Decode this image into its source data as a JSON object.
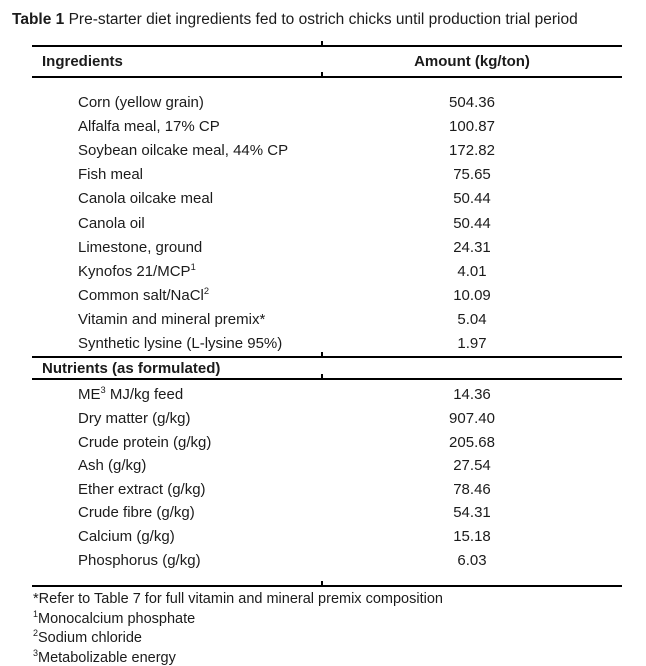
{
  "title": {
    "bold": "Table 1",
    "rest": " Pre-starter diet ingredients fed to ostrich chicks until production trial period"
  },
  "table": {
    "header": {
      "ingredients": "Ingredients",
      "amount": "Amount (kg/ton)"
    },
    "ingredients_rows": [
      {
        "pre": "Corn (yellow grain)",
        "sup": "",
        "post": "",
        "amount": "504.36"
      },
      {
        "pre": "Alfalfa meal, 17% CP",
        "sup": "",
        "post": "",
        "amount": "100.87"
      },
      {
        "pre": "Soybean oilcake meal, 44% CP",
        "sup": "",
        "post": "",
        "amount": "172.82"
      },
      {
        "pre": "Fish meal",
        "sup": "",
        "post": "",
        "amount": "75.65"
      },
      {
        "pre": "Canola oilcake meal",
        "sup": "",
        "post": "",
        "amount": "50.44"
      },
      {
        "pre": "Canola oil",
        "sup": "",
        "post": "",
        "amount": "50.44"
      },
      {
        "pre": "Limestone, ground",
        "sup": "",
        "post": "",
        "amount": "24.31"
      },
      {
        "pre": "Kynofos 21/MCP",
        "sup": "1",
        "post": "",
        "amount": "4.01"
      },
      {
        "pre": "Common salt/NaCl",
        "sup": "2",
        "post": "",
        "amount": "10.09"
      },
      {
        "pre": "Vitamin and mineral premix*",
        "sup": "",
        "post": "",
        "amount": "5.04"
      },
      {
        "pre": "Synthetic lysine (L-lysine 95%)",
        "sup": "",
        "post": "",
        "amount": "1.97"
      }
    ],
    "section2_header": "Nutrients (as formulated)",
    "nutrients_rows": [
      {
        "pre": "ME",
        "sup": "3",
        "post": " MJ/kg feed",
        "amount": "14.36"
      },
      {
        "pre": "Dry matter (g/kg)",
        "sup": "",
        "post": "",
        "amount": "907.40"
      },
      {
        "pre": "Crude protein (g/kg)",
        "sup": "",
        "post": "",
        "amount": "205.68"
      },
      {
        "pre": "Ash (g/kg)",
        "sup": "",
        "post": "",
        "amount": "27.54"
      },
      {
        "pre": "Ether extract (g/kg)",
        "sup": "",
        "post": "",
        "amount": "78.46"
      },
      {
        "pre": "Crude fibre (g/kg)",
        "sup": "",
        "post": "",
        "amount": "54.31"
      },
      {
        "pre": "Calcium (g/kg)",
        "sup": "",
        "post": "",
        "amount": "15.18"
      },
      {
        "pre": "Phosphorus (g/kg)",
        "sup": "",
        "post": "",
        "amount": "6.03"
      }
    ]
  },
  "footnotes": [
    {
      "marker": "*",
      "superscript": false,
      "text": "Refer to Table 7 for full vitamin and mineral premix composition"
    },
    {
      "marker": "1",
      "superscript": true,
      "text": "Monocalcium phosphate"
    },
    {
      "marker": "2",
      "superscript": true,
      "text": "Sodium chloride"
    },
    {
      "marker": "3",
      "superscript": true,
      "text": "Metabolizable energy"
    }
  ],
  "colors": {
    "text": "#1b1b1b",
    "rule": "#000000",
    "background": "#ffffff"
  }
}
